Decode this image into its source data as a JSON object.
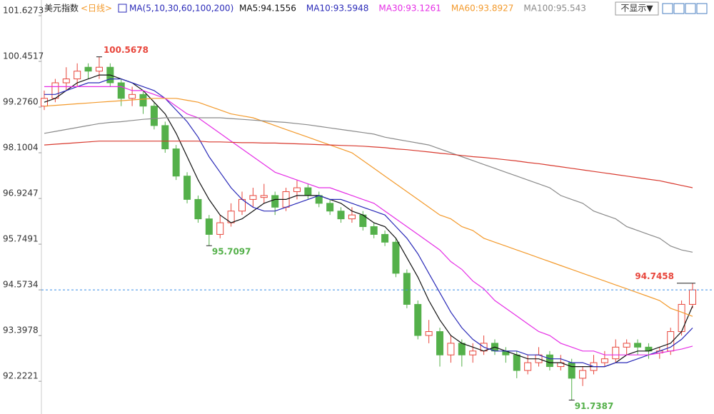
{
  "chart_data": {
    "type": "candlestick",
    "title": "美元指数",
    "period": "<日线>",
    "indicator": "MA(5,10,30,60,100,200)",
    "button": "不显示▼",
    "ylim": [
      91.38,
      102.03
    ],
    "yticks": [
      101.6273,
      100.4517,
      {
        "value": 99.276,
        "label": "99.2760"
      },
      98.1004,
      96.9247,
      95.7491,
      94.5734,
      93.3978,
      92.2221
    ],
    "up_color": "#e8463c",
    "down_color": "#54b04a",
    "last_line_color": "#3a8ee6",
    "values": [
      [
        99.3,
        99.7,
        99.2,
        99.5
      ],
      [
        99.5,
        100.0,
        99.4,
        99.9
      ],
      [
        99.9,
        100.3,
        99.7,
        100.0
      ],
      [
        100.0,
        100.4,
        99.8,
        100.2
      ],
      [
        100.3,
        100.4,
        100.0,
        100.2
      ],
      [
        100.2,
        100.5678,
        100.0,
        100.3
      ],
      [
        100.3,
        100.4,
        99.8,
        99.9
      ],
      [
        99.9,
        100.0,
        99.3,
        99.5
      ],
      [
        99.5,
        99.8,
        99.3,
        99.6
      ],
      [
        99.6,
        99.7,
        99.1,
        99.3
      ],
      [
        99.3,
        99.4,
        98.7,
        98.8
      ],
      [
        98.8,
        98.9,
        98.1,
        98.2
      ],
      [
        98.2,
        98.3,
        97.4,
        97.5
      ],
      [
        97.5,
        97.6,
        96.8,
        96.9
      ],
      [
        96.9,
        97.0,
        96.3,
        96.4
      ],
      [
        96.4,
        96.5,
        95.7097,
        96.0
      ],
      [
        96.0,
        96.5,
        95.9,
        96.3
      ],
      [
        96.3,
        96.8,
        96.2,
        96.6
      ],
      [
        96.6,
        97.1,
        96.5,
        96.9
      ],
      [
        96.9,
        97.2,
        96.7,
        97.0
      ],
      [
        96.95,
        97.3,
        96.8,
        97.0
      ],
      [
        97.0,
        97.1,
        96.5,
        96.7
      ],
      [
        96.7,
        97.2,
        96.6,
        97.1
      ],
      [
        97.1,
        97.4,
        96.9,
        97.2
      ],
      [
        97.2,
        97.3,
        96.9,
        97.0
      ],
      [
        97.0,
        97.1,
        96.7,
        96.8
      ],
      [
        96.8,
        96.9,
        96.5,
        96.6
      ],
      [
        96.6,
        96.7,
        96.3,
        96.4
      ],
      [
        96.4,
        96.7,
        96.3,
        96.5
      ],
      [
        96.5,
        96.6,
        96.1,
        96.2
      ],
      [
        96.2,
        96.3,
        95.9,
        96.0
      ],
      [
        96.0,
        96.1,
        95.7,
        95.8
      ],
      [
        95.8,
        95.9,
        94.9,
        95.0
      ],
      [
        95.0,
        95.1,
        94.1,
        94.2
      ],
      [
        94.2,
        94.3,
        93.3,
        93.4
      ],
      [
        93.4,
        93.8,
        93.2,
        93.5
      ],
      [
        93.5,
        93.6,
        92.6,
        92.9
      ],
      [
        92.9,
        93.4,
        92.7,
        93.2
      ],
      [
        93.2,
        93.3,
        92.6,
        92.9
      ],
      [
        92.9,
        93.2,
        92.7,
        93.0
      ],
      [
        93.0,
        93.4,
        92.9,
        93.2
      ],
      [
        93.2,
        93.3,
        92.9,
        93.0
      ],
      [
        93.0,
        93.1,
        92.7,
        92.9
      ],
      [
        92.9,
        93.0,
        92.3,
        92.5
      ],
      [
        92.5,
        92.9,
        92.4,
        92.7
      ],
      [
        92.7,
        93.1,
        92.6,
        92.9
      ],
      [
        92.9,
        93.0,
        92.5,
        92.6
      ],
      [
        92.6,
        92.9,
        92.5,
        92.7
      ],
      [
        92.7,
        92.8,
        91.7387,
        92.3
      ],
      [
        92.3,
        92.6,
        92.1,
        92.5
      ],
      [
        92.5,
        92.9,
        92.4,
        92.7
      ],
      [
        92.7,
        93.0,
        92.6,
        92.8
      ],
      [
        92.8,
        93.3,
        92.7,
        93.1
      ],
      [
        93.1,
        93.3,
        92.9,
        93.2
      ],
      [
        93.2,
        93.3,
        92.9,
        93.1
      ],
      [
        93.1,
        93.2,
        92.8,
        93.0
      ],
      [
        92.95,
        93.1,
        92.8,
        93.0
      ],
      [
        93.0,
        93.6,
        92.9,
        93.5
      ],
      [
        93.5,
        94.3,
        93.4,
        94.2
      ],
      [
        94.2,
        94.7458,
        94.1,
        94.5734
      ]
    ],
    "series": [
      {
        "name": "MA5:94.1556",
        "color": "#111111",
        "values": [
          99.4,
          99.5,
          99.7,
          99.9,
          100.0,
          100.1,
          100.1,
          100.0,
          99.9,
          99.7,
          99.4,
          99.1,
          98.6,
          98.0,
          97.4,
          96.9,
          96.5,
          96.3,
          96.4,
          96.6,
          96.8,
          96.9,
          96.9,
          97.0,
          97.0,
          97.0,
          96.9,
          96.8,
          96.6,
          96.5,
          96.3,
          96.2,
          95.9,
          95.4,
          94.9,
          94.3,
          93.8,
          93.4,
          93.2,
          93.1,
          93.0,
          93.1,
          93.0,
          92.9,
          92.8,
          92.8,
          92.7,
          92.7,
          92.6,
          92.6,
          92.6,
          92.6,
          92.7,
          92.9,
          93.0,
          93.0,
          93.1,
          93.2,
          93.5,
          94.1556
        ]
      },
      {
        "name": "MA10:93.5948",
        "color": "#2a2ab8",
        "values": [
          99.6,
          99.6,
          99.7,
          99.8,
          99.9,
          99.9,
          100.0,
          100.0,
          99.9,
          99.8,
          99.7,
          99.5,
          99.2,
          98.9,
          98.5,
          98.0,
          97.6,
          97.2,
          96.9,
          96.7,
          96.6,
          96.6,
          96.7,
          96.8,
          96.9,
          97.0,
          96.9,
          96.9,
          96.8,
          96.7,
          96.6,
          96.5,
          96.2,
          95.9,
          95.5,
          95.0,
          94.5,
          94.0,
          93.6,
          93.3,
          93.1,
          93.0,
          93.0,
          93.0,
          92.9,
          92.9,
          92.8,
          92.8,
          92.7,
          92.7,
          92.6,
          92.6,
          92.7,
          92.7,
          92.8,
          92.9,
          93.0,
          93.1,
          93.3,
          93.5948
        ]
      },
      {
        "name": "MA30:93.1261",
        "color": "#e52ee5",
        "values": [
          99.8,
          99.8,
          99.8,
          99.8,
          99.8,
          99.8,
          99.8,
          99.8,
          99.7,
          99.7,
          99.6,
          99.5,
          99.3,
          99.1,
          99.0,
          98.8,
          98.6,
          98.4,
          98.2,
          98.0,
          97.8,
          97.6,
          97.5,
          97.4,
          97.3,
          97.2,
          97.2,
          97.1,
          97.0,
          96.9,
          96.8,
          96.6,
          96.4,
          96.2,
          96.0,
          95.8,
          95.6,
          95.3,
          95.1,
          94.8,
          94.6,
          94.3,
          94.1,
          93.9,
          93.7,
          93.5,
          93.4,
          93.2,
          93.1,
          93.0,
          93.0,
          92.9,
          92.9,
          92.9,
          92.9,
          92.9,
          92.95,
          93.0,
          93.05,
          93.1261
        ]
      },
      {
        "name": "MA60:93.8927",
        "color": "#f39a2c",
        "values": [
          99.3,
          99.32,
          99.34,
          99.36,
          99.38,
          99.4,
          99.42,
          99.44,
          99.46,
          99.48,
          99.5,
          99.5,
          99.5,
          99.45,
          99.4,
          99.3,
          99.2,
          99.1,
          99.05,
          99.0,
          98.9,
          98.8,
          98.7,
          98.6,
          98.5,
          98.4,
          98.3,
          98.2,
          98.1,
          97.9,
          97.7,
          97.5,
          97.3,
          97.1,
          96.9,
          96.7,
          96.5,
          96.4,
          96.2,
          96.1,
          95.9,
          95.8,
          95.7,
          95.6,
          95.5,
          95.4,
          95.3,
          95.2,
          95.1,
          95.0,
          94.9,
          94.8,
          94.7,
          94.6,
          94.5,
          94.4,
          94.3,
          94.1,
          94.0,
          93.8927
        ]
      },
      {
        "name": "MA100:95.543",
        "color": "#8a8a8a",
        "values": [
          98.6,
          98.65,
          98.7,
          98.75,
          98.8,
          98.85,
          98.88,
          98.9,
          98.93,
          98.96,
          98.98,
          99.0,
          99.0,
          99.0,
          99.0,
          99.0,
          99.0,
          98.98,
          98.96,
          98.94,
          98.92,
          98.9,
          98.88,
          98.85,
          98.82,
          98.78,
          98.74,
          98.7,
          98.66,
          98.62,
          98.58,
          98.5,
          98.45,
          98.4,
          98.35,
          98.3,
          98.2,
          98.1,
          98.0,
          97.9,
          97.8,
          97.7,
          97.6,
          97.5,
          97.4,
          97.3,
          97.2,
          97.0,
          96.9,
          96.8,
          96.6,
          96.5,
          96.4,
          96.2,
          96.1,
          96.0,
          95.9,
          95.7,
          95.6,
          95.543
        ]
      },
      {
        "color": "#d8392e",
        "values": [
          98.3,
          98.32,
          98.34,
          98.36,
          98.38,
          98.4,
          98.4,
          98.4,
          98.4,
          98.4,
          98.4,
          98.4,
          98.4,
          98.4,
          98.4,
          98.38,
          98.38,
          98.37,
          98.36,
          98.36,
          98.35,
          98.35,
          98.34,
          98.33,
          98.32,
          98.31,
          98.3,
          98.29,
          98.28,
          98.27,
          98.25,
          98.23,
          98.2,
          98.18,
          98.15,
          98.12,
          98.09,
          98.06,
          98.03,
          98.0,
          97.98,
          97.95,
          97.92,
          97.89,
          97.85,
          97.82,
          97.78,
          97.74,
          97.7,
          97.66,
          97.62,
          97.58,
          97.54,
          97.5,
          97.46,
          97.42,
          97.38,
          97.32,
          97.26,
          97.2
        ]
      }
    ]
  }
}
